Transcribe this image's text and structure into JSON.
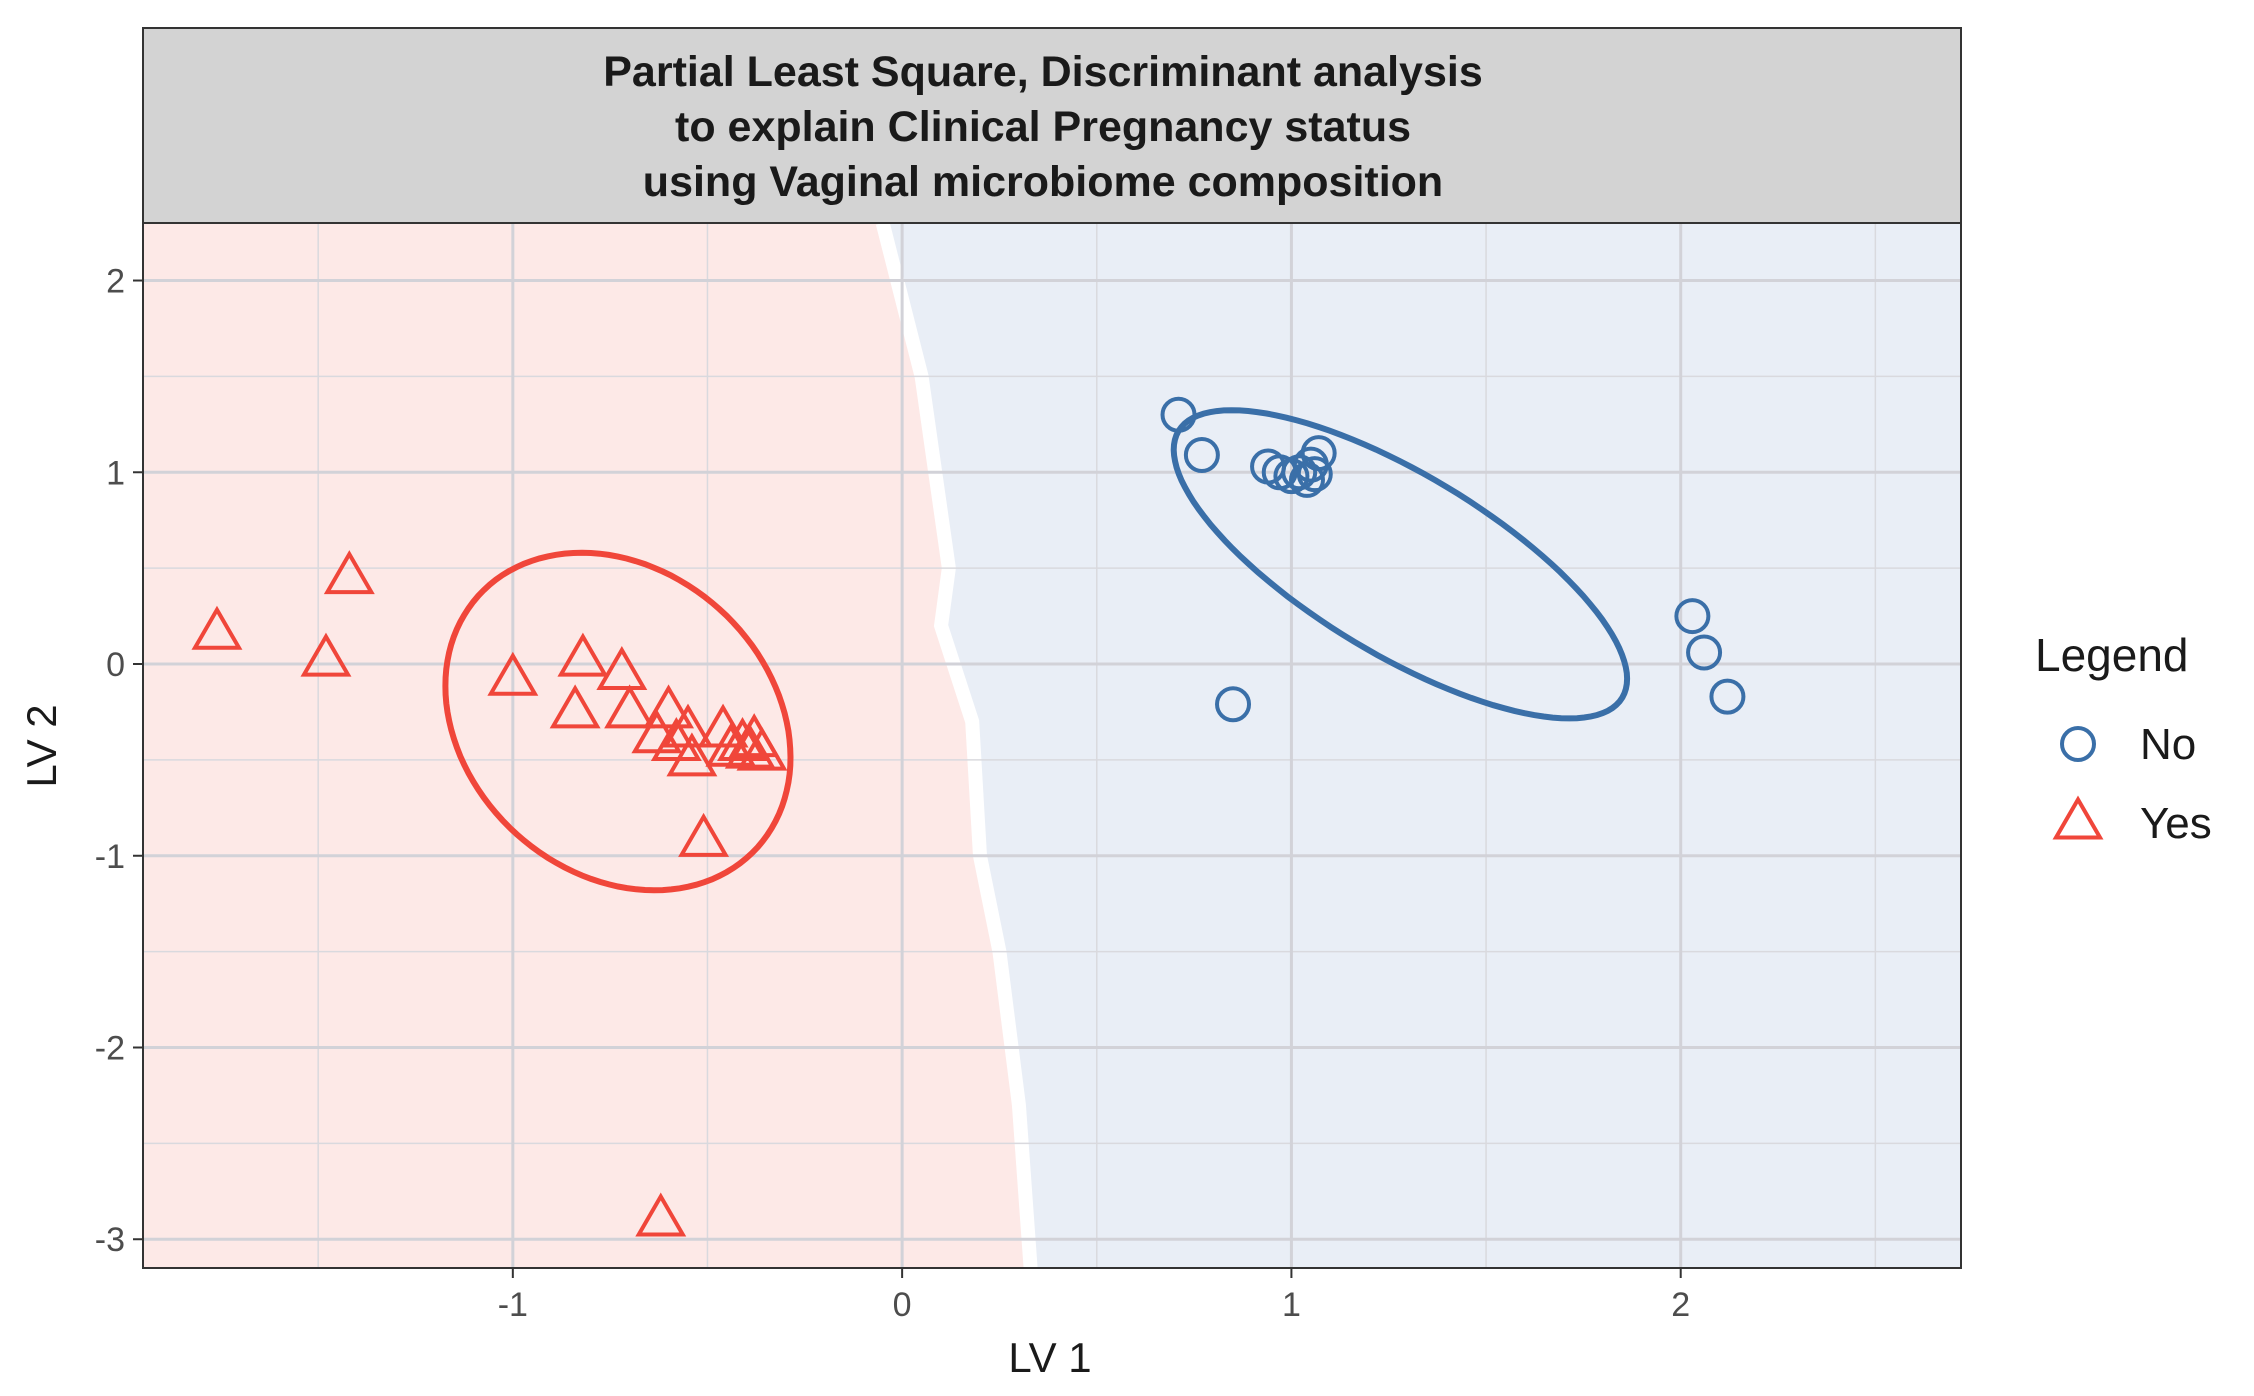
{
  "chart_data": {
    "type": "scatter",
    "title_lines": [
      "Partial Least Square, Discriminant analysis",
      "to explain Clinical Pregnancy status",
      "using Vaginal microbiome composition"
    ],
    "xlabel": "LV 1",
    "ylabel": "LV 2",
    "xlim": [
      -1.95,
      2.72
    ],
    "ylim": [
      -3.15,
      2.3
    ],
    "x_ticks": [
      -1,
      0,
      1,
      2
    ],
    "x_tick_labels": [
      "-1",
      "0",
      "1",
      "2"
    ],
    "y_ticks": [
      -3,
      -2,
      -1,
      0,
      1,
      2
    ],
    "y_tick_labels": [
      "-3",
      "-2",
      "-1",
      "0",
      "1",
      "2"
    ],
    "grid": true,
    "legend": {
      "title": "Legend",
      "position": "right",
      "entries": [
        {
          "label": "No",
          "shape": "circle",
          "color": "#3a6fa8"
        },
        {
          "label": "Yes",
          "shape": "triangle",
          "color": "#f0463a"
        }
      ]
    },
    "background_regions": {
      "yes_color": "#fde9e7",
      "no_color": "#e9eef6",
      "boundary": [
        [
          -0.05,
          2.3
        ],
        [
          0.05,
          1.5
        ],
        [
          0.12,
          0.5
        ],
        [
          0.1,
          0.2
        ],
        [
          0.18,
          -0.3
        ],
        [
          0.2,
          -1.0
        ],
        [
          0.25,
          -1.5
        ],
        [
          0.3,
          -2.3
        ],
        [
          0.33,
          -3.15
        ]
      ]
    },
    "series": [
      {
        "name": "No",
        "color": "#3a6fa8",
        "shape": "circle",
        "points": [
          [
            0.71,
            1.3
          ],
          [
            0.77,
            1.09
          ],
          [
            0.94,
            1.03
          ],
          [
            0.97,
            1.0
          ],
          [
            1.0,
            0.98
          ],
          [
            1.02,
            1.0
          ],
          [
            1.04,
            0.96
          ],
          [
            1.05,
            1.04
          ],
          [
            1.06,
            0.99
          ],
          [
            1.07,
            1.1
          ],
          [
            0.85,
            -0.21
          ],
          [
            2.03,
            0.25
          ],
          [
            2.06,
            0.06
          ],
          [
            2.12,
            -0.17
          ]
        ],
        "ellipse": {
          "cx": 1.28,
          "cy": 0.52,
          "rx": 1.35,
          "ry": 0.47,
          "angle_deg": -31
        }
      },
      {
        "name": "Yes",
        "color": "#f0463a",
        "shape": "triangle",
        "points": [
          [
            -1.76,
            0.16
          ],
          [
            -1.48,
            0.02
          ],
          [
            -1.42,
            0.45
          ],
          [
            -1.0,
            -0.08
          ],
          [
            -0.82,
            0.02
          ],
          [
            -0.84,
            -0.25
          ],
          [
            -0.72,
            -0.05
          ],
          [
            -0.7,
            -0.25
          ],
          [
            -0.6,
            -0.25
          ],
          [
            -0.63,
            -0.38
          ],
          [
            -0.55,
            -0.35
          ],
          [
            -0.58,
            -0.42
          ],
          [
            -0.54,
            -0.5
          ],
          [
            -0.46,
            -0.35
          ],
          [
            -0.44,
            -0.45
          ],
          [
            -0.41,
            -0.42
          ],
          [
            -0.39,
            -0.46
          ],
          [
            -0.38,
            -0.4
          ],
          [
            -0.36,
            -0.47
          ],
          [
            -0.51,
            -0.92
          ],
          [
            -0.62,
            -2.9
          ]
        ],
        "ellipse": {
          "cx": -0.73,
          "cy": -0.3,
          "rx": 0.98,
          "ry": 0.79,
          "angle_deg": -42
        }
      }
    ]
  }
}
